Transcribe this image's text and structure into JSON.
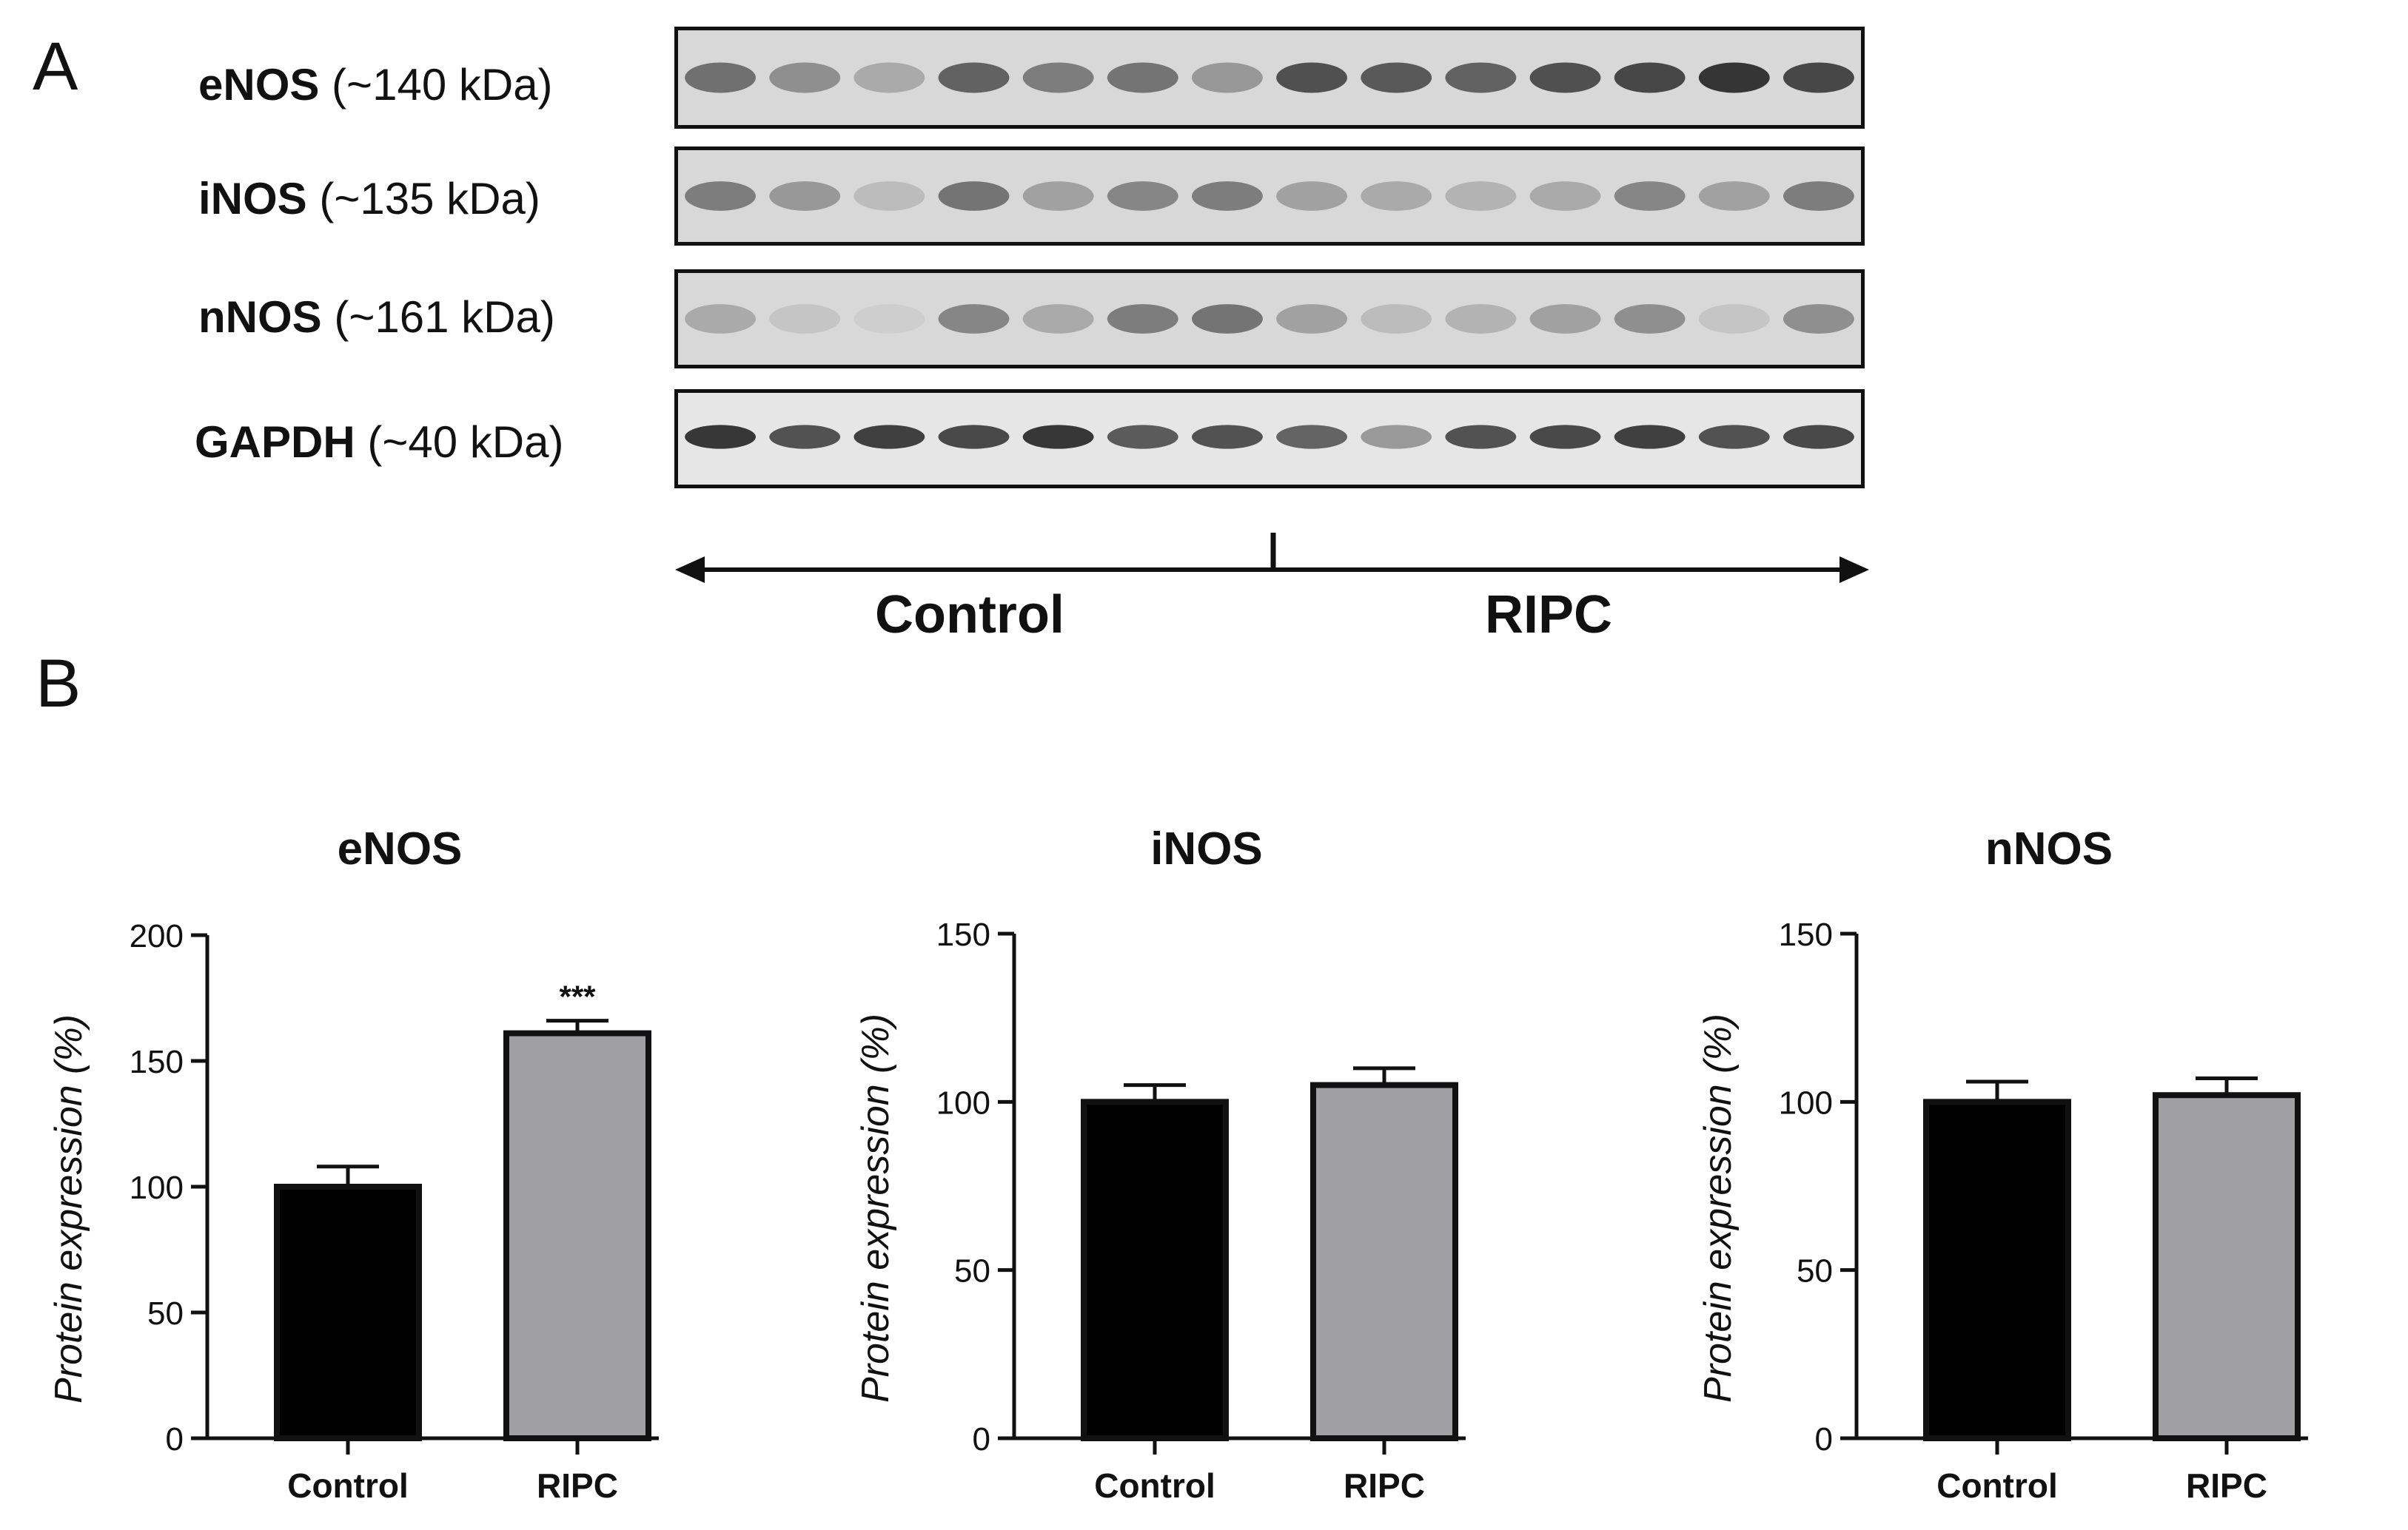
{
  "panel_a": {
    "letter": "A",
    "blots": [
      {
        "protein": "eNOS",
        "size": "(~140 kDa)",
        "lanes": [
          0.62,
          0.45,
          0.3,
          0.7,
          0.55,
          0.6,
          0.4,
          0.8,
          0.75,
          0.7,
          0.8,
          0.85,
          0.95,
          0.85
        ]
      },
      {
        "protein": "iNOS",
        "size": "(~135 kDa)",
        "lanes": [
          0.55,
          0.4,
          0.2,
          0.6,
          0.35,
          0.5,
          0.55,
          0.35,
          0.3,
          0.25,
          0.3,
          0.5,
          0.35,
          0.55
        ]
      },
      {
        "protein": "nNOS",
        "size": "(~161 kDa)",
        "lanes": [
          0.3,
          0.15,
          0.1,
          0.5,
          0.3,
          0.55,
          0.6,
          0.35,
          0.2,
          0.25,
          0.35,
          0.45,
          0.15,
          0.45
        ]
      },
      {
        "protein": "GAPDH",
        "size": "(~40 kDa)",
        "lanes": [
          0.95,
          0.8,
          0.9,
          0.85,
          0.95,
          0.75,
          0.8,
          0.7,
          0.4,
          0.8,
          0.85,
          0.9,
          0.8,
          0.85
        ]
      }
    ],
    "groups": {
      "left": "Control",
      "right": "RIPC"
    }
  },
  "panel_b": {
    "letter": "B"
  },
  "chart_data": [
    {
      "type": "bar",
      "title": "eNOS",
      "categories": [
        "Control",
        "RIPC"
      ],
      "values": [
        100,
        161
      ],
      "errors": [
        8,
        5
      ],
      "colors": [
        "#000000",
        "#a0a0a4"
      ],
      "ylabel": "Protein expression (%)",
      "ylim": [
        0,
        200
      ],
      "yticks": [
        0,
        50,
        100,
        150,
        200
      ],
      "annotations": [
        "",
        "***"
      ]
    },
    {
      "type": "bar",
      "title": "iNOS",
      "categories": [
        "Control",
        "RIPC"
      ],
      "values": [
        100,
        105
      ],
      "errors": [
        5,
        5
      ],
      "colors": [
        "#000000",
        "#a0a0a4"
      ],
      "ylabel": "Protein expression (%)",
      "ylim": [
        0,
        150
      ],
      "yticks": [
        0,
        50,
        100,
        150
      ],
      "annotations": [
        "",
        ""
      ]
    },
    {
      "type": "bar",
      "title": "nNOS",
      "categories": [
        "Control",
        "RIPC"
      ],
      "values": [
        100,
        102
      ],
      "errors": [
        6,
        5
      ],
      "colors": [
        "#000000",
        "#a0a0a4"
      ],
      "ylabel": "Protein expression (%)",
      "ylim": [
        0,
        150
      ],
      "yticks": [
        0,
        50,
        100,
        150
      ],
      "annotations": [
        "",
        ""
      ]
    }
  ]
}
